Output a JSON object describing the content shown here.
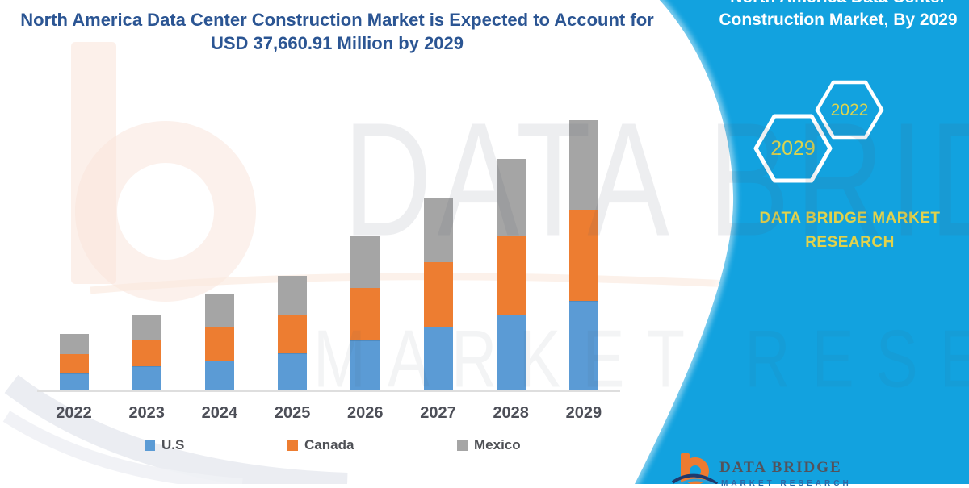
{
  "title": {
    "line1": "North America Data Center Construction Market is Expected to Account for",
    "line2": "USD 37,660.91 Million by 2029"
  },
  "panel": {
    "heading_line1": "North America Data Center",
    "heading_line2": "Construction Market, By 2029",
    "hexagons": [
      {
        "label": "2029"
      },
      {
        "label": "2022"
      }
    ],
    "brand_line1": "DATA BRIDGE MARKET",
    "brand_line2": "RESEARCH",
    "accent_blue": "#12A2DF",
    "accent_yellow": "#DCD44E"
  },
  "watermark": {
    "line1": "DATA BRIDGE",
    "line2": "MARKET RESEARCH"
  },
  "footer_logo": {
    "brand_name": "DATA BRIDGE",
    "brand_sub": "MARKET RESEARCH"
  },
  "chart_data": {
    "type": "bar",
    "stacked": true,
    "title": "North America Data Center Construction Market is Expected to Account for USD 37,660.91 Million by 2029",
    "unit": "USD Million",
    "categories": [
      "2022",
      "2023",
      "2024",
      "2025",
      "2026",
      "2027",
      "2028",
      "2029"
    ],
    "series": [
      {
        "name": "U.S",
        "color": "#5B9BD5",
        "values": [
          2417,
          3361,
          4216,
          5205,
          7004,
          8848,
          10590,
          12479
        ]
      },
      {
        "name": "Canada",
        "color": "#ED7D31",
        "values": [
          2698,
          3597,
          4575,
          5385,
          7273,
          9061,
          10949,
          12748
        ]
      },
      {
        "name": "Mexico",
        "color": "#A5A5A5",
        "values": [
          2788,
          3631,
          4542,
          5430,
          7161,
          8881,
          10770,
          12434
        ]
      }
    ],
    "highlight": {
      "year": "2029",
      "total": 37660.91
    },
    "ylim": [
      0,
      40000
    ],
    "y_axis_visible": false,
    "gridlines": false,
    "legend_position": "bottom",
    "xlabel": "",
    "ylabel": ""
  }
}
